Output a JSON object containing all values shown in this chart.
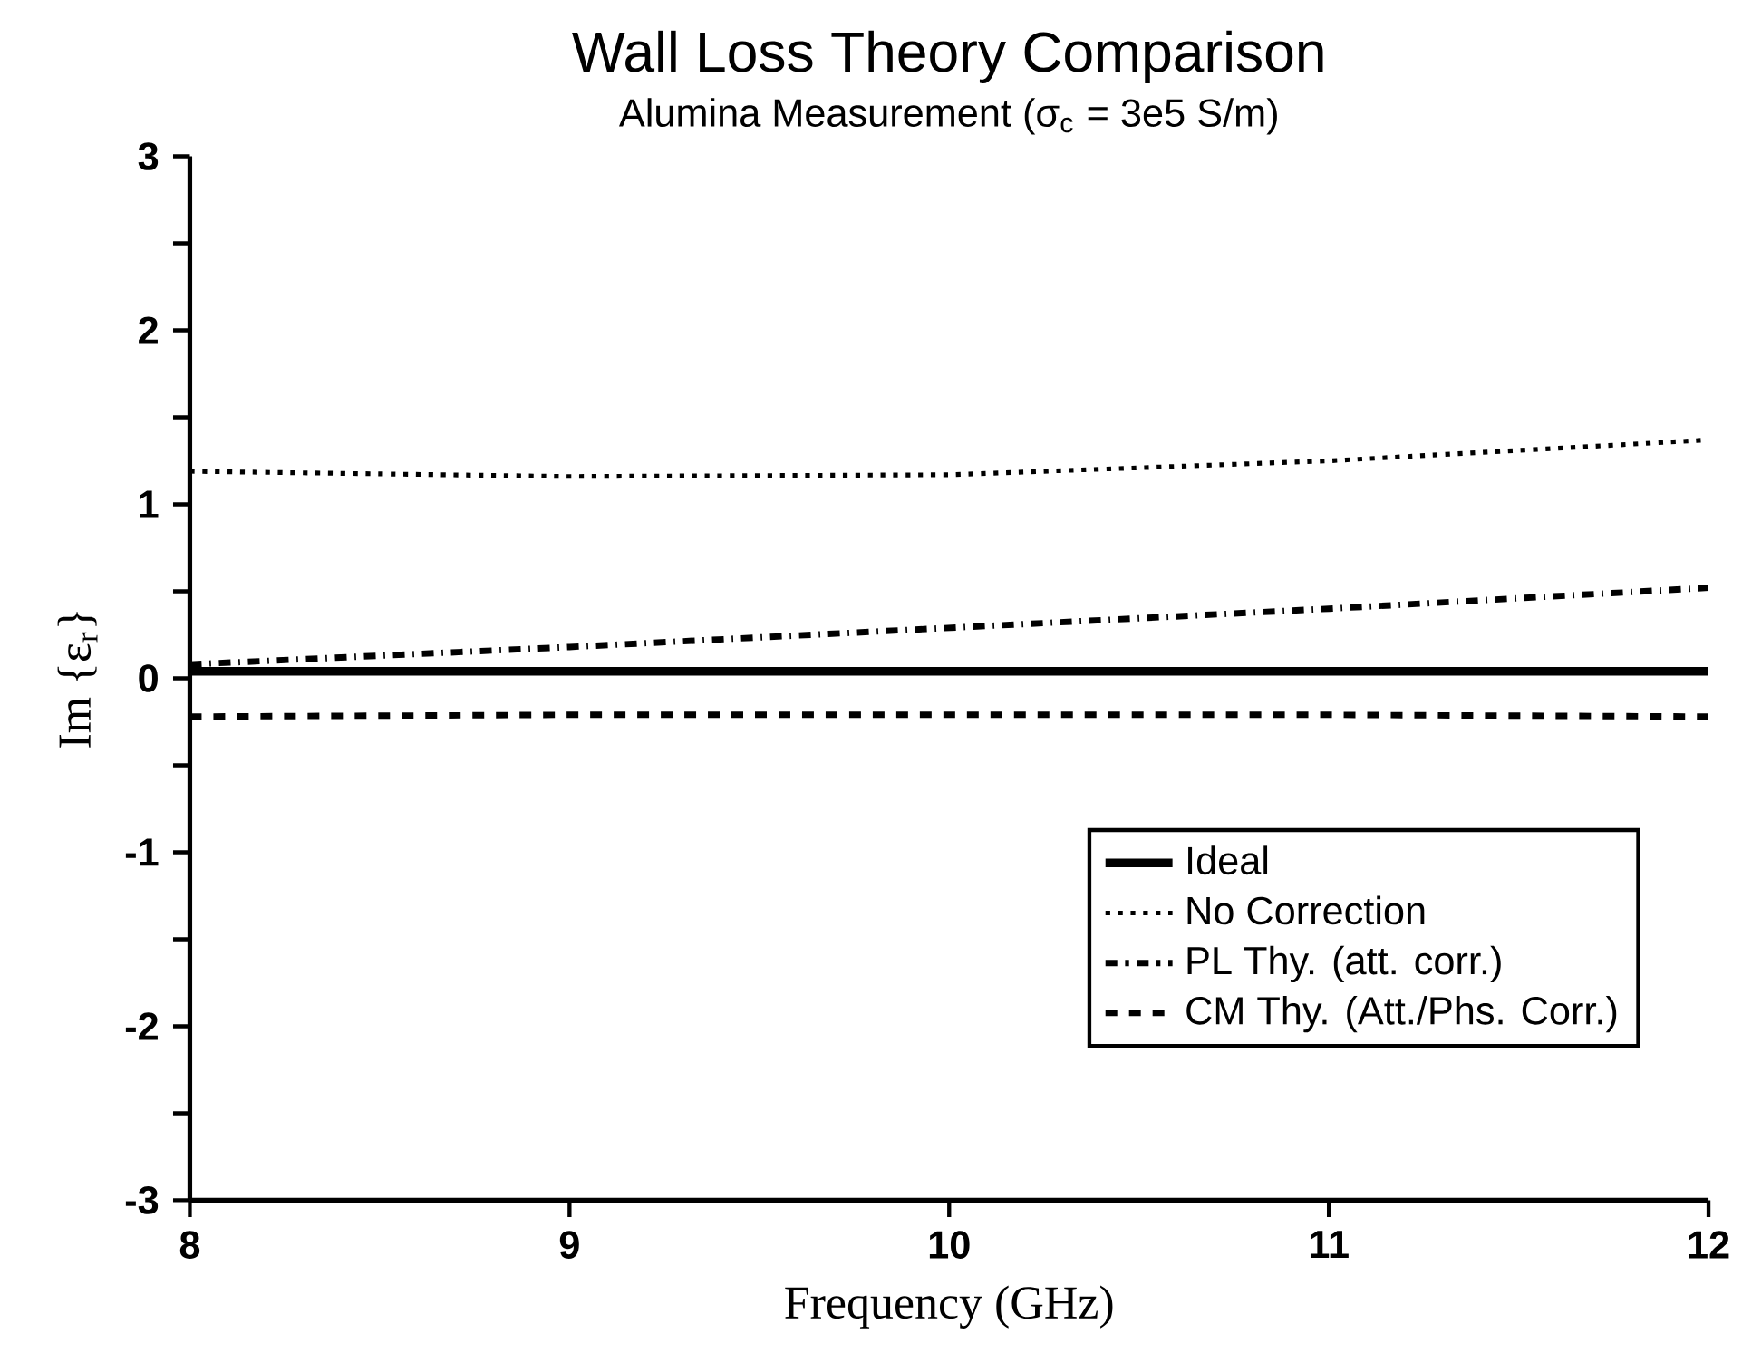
{
  "chart_data": {
    "type": "line",
    "title": "Wall Loss Theory Comparison",
    "subtitle": "Alumina Measurement (σ$_{c}$ = 3e5  S/m)",
    "xlabel": "Frequency (GHz)",
    "ylabel": "Im {ε$_{r}$}",
    "x": [
      8,
      9,
      10,
      11,
      12
    ],
    "series": [
      {
        "name": "Ideal",
        "color": "#000000",
        "line_style": "solid",
        "values": [
          0.04,
          0.04,
          0.04,
          0.04,
          0.04
        ]
      },
      {
        "name": "No Correction",
        "color": "#000000",
        "line_style": "dotted",
        "values": [
          1.19,
          1.16,
          1.17,
          1.25,
          1.37
        ]
      },
      {
        "name": "PL Thy. (att. corr.)",
        "color": "#000000",
        "line_style": "dashdot",
        "values": [
          0.08,
          0.18,
          0.29,
          0.4,
          0.52
        ]
      },
      {
        "name": "CM Thy. (Att./Phs. Corr.)",
        "color": "#000000",
        "line_style": "dashed",
        "values": [
          -0.22,
          -0.21,
          -0.21,
          -0.21,
          -0.22
        ]
      }
    ],
    "xlim": [
      8,
      12
    ],
    "xticks": [
      8,
      9,
      10,
      11,
      12
    ],
    "ylim": [
      -3,
      3
    ],
    "yticks": [
      -3,
      {
        "value": -2.5,
        "label": null
      },
      -2,
      {
        "value": -1.5,
        "label": null
      },
      -1,
      {
        "value": -0.5,
        "label": null
      },
      0,
      {
        "value": 0.5,
        "label": null
      },
      1,
      {
        "value": 1.5,
        "label": null
      },
      2,
      {
        "value": 2.5,
        "label": null
      },
      3
    ],
    "grid": false,
    "legend": "bottom right",
    "marker": "none"
  }
}
